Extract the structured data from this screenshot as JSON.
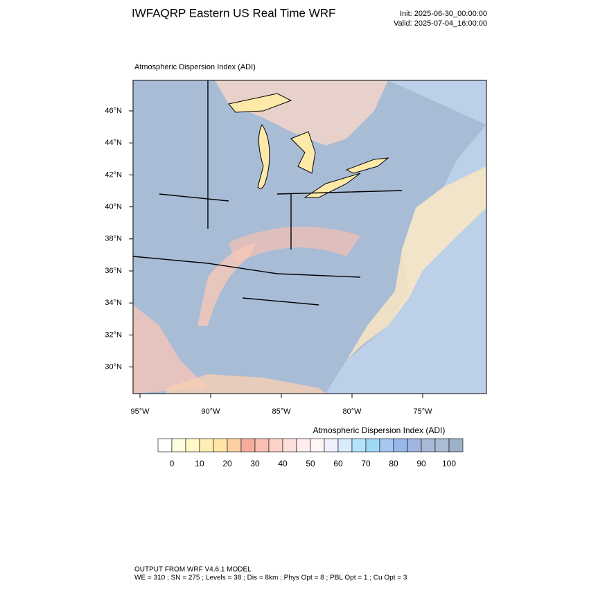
{
  "header": {
    "title": "IWFAQRP Eastern US Real Time WRF",
    "init": "Init: 2025-06-30_00:00:00",
    "valid": "Valid: 2025-07-04_16:00:00"
  },
  "map": {
    "subtitle": "Atmospheric Dispersion Index   (ADI)",
    "lat_labels": [
      {
        "value": 46,
        "label": "46°N"
      },
      {
        "value": 44,
        "label": "44°N"
      },
      {
        "value": 42,
        "label": "42°N"
      },
      {
        "value": 40,
        "label": "40°N"
      },
      {
        "value": 38,
        "label": "38°N"
      },
      {
        "value": 36,
        "label": "36°N"
      },
      {
        "value": 34,
        "label": "34°N"
      },
      {
        "value": 32,
        "label": "32°N"
      },
      {
        "value": 30,
        "label": "30°N"
      }
    ],
    "lon_labels": [
      {
        "value": -95,
        "label": "95°W"
      },
      {
        "value": -90,
        "label": "90°W"
      },
      {
        "value": -85,
        "label": "85°W"
      },
      {
        "value": -80,
        "label": "80°W"
      },
      {
        "value": -75,
        "label": "75°W"
      }
    ]
  },
  "colorbar": {
    "title": "Atmospheric Dispersion Index  (ADI)",
    "ticks": [
      0,
      10,
      20,
      30,
      40,
      50,
      60,
      70,
      80,
      90,
      100
    ],
    "colors": [
      "#ffffff",
      "#fffde0",
      "#fff7c8",
      "#ffeeb4",
      "#ffe4a4",
      "#fcd0a4",
      "#f6ae9c",
      "#f8c0b4",
      "#fad2c8",
      "#fde0dc",
      "#ffecec",
      "#fff6f6",
      "#eef0fe",
      "#d8ecfe",
      "#b4e4fc",
      "#a0d6f6",
      "#a4c8f0",
      "#98b8ea",
      "#a0b6e0",
      "#a8b8d8",
      "#a8bcd2",
      "#9cb0c8"
    ]
  },
  "footer": {
    "line1": "OUTPUT FROM WRF V4.6.1 MODEL",
    "line2": "WE = 310 ; SN = 275 ; Levels = 38 ; Dis = 8km ; Phys Opt = 8 ; PBL Opt = 1 ; Cu Opt = 3"
  }
}
